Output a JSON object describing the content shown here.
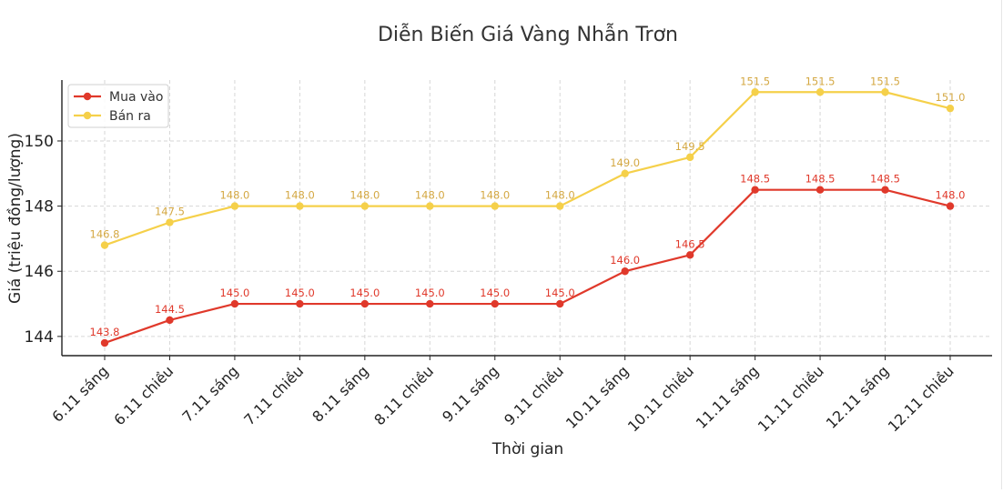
{
  "chart_data": {
    "type": "line",
    "title": "Diễn Biến Giá Vàng Nhẫn Trơn",
    "xlabel": "Thời gian",
    "ylabel": "Giá (triệu đồng/lượng)",
    "categories": [
      "6.11 sáng",
      "6.11 chiều",
      "7.11 sáng",
      "7.11 chiều",
      "8.11 sáng",
      "8.11 chiều",
      "9.11 sáng",
      "9.11 chiều",
      "10.11 sáng",
      "10.11 chiều",
      "11.11 sáng",
      "11.11 chiều",
      "12.11 sáng",
      "12.11 chiều"
    ],
    "series": [
      {
        "name": "Mua vào",
        "color": "#e0392b",
        "label_color": "#e0392b",
        "values": [
          143.8,
          144.5,
          145.0,
          145.0,
          145.0,
          145.0,
          145.0,
          145.0,
          146.0,
          146.5,
          148.5,
          148.5,
          148.5,
          148.0
        ]
      },
      {
        "name": "Bán ra",
        "color": "#f5d04a",
        "label_color": "#d4a843",
        "values": [
          146.8,
          147.5,
          148.0,
          148.0,
          148.0,
          148.0,
          148.0,
          148.0,
          149.0,
          149.5,
          151.5,
          151.5,
          151.5,
          151.0
        ]
      }
    ],
    "yticks": [
      144,
      146,
      148,
      150
    ],
    "ylim": [
      143.41,
      151.87
    ],
    "grid": true,
    "legend_position": "upper left",
    "data_labels": true
  }
}
